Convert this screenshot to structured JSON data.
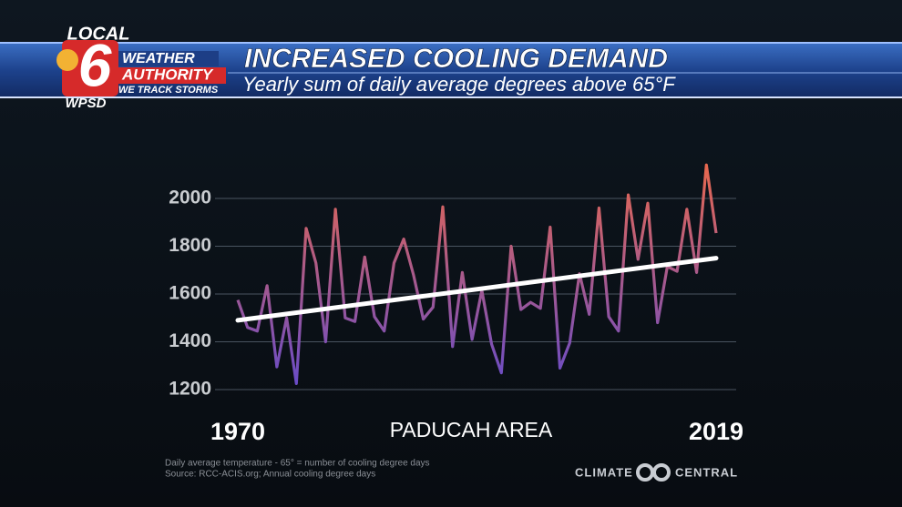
{
  "header": {
    "station_top": "LOCAL",
    "station_number": "6",
    "brand_line1": "WEATHER",
    "brand_line2": "AUTHORITY",
    "brand_line3": "WE TRACK STORMS",
    "station_call": "WPSD"
  },
  "chart_data": {
    "type": "line",
    "title": "INCREASED COOLING DEMAND",
    "subtitle": "Yearly sum of daily average degrees above 65°F",
    "x_label": "PADUCAH AREA",
    "x": [
      1970,
      1971,
      1972,
      1973,
      1974,
      1975,
      1976,
      1977,
      1978,
      1979,
      1980,
      1981,
      1982,
      1983,
      1984,
      1985,
      1986,
      1987,
      1988,
      1989,
      1990,
      1991,
      1992,
      1993,
      1994,
      1995,
      1996,
      1997,
      1998,
      1999,
      2000,
      2001,
      2002,
      2003,
      2004,
      2005,
      2006,
      2007,
      2008,
      2009,
      2010,
      2011,
      2012,
      2013,
      2014,
      2015,
      2016,
      2017,
      2018,
      2019
    ],
    "values": [
      1575,
      1460,
      1445,
      1635,
      1295,
      1500,
      1225,
      1875,
      1730,
      1400,
      1955,
      1500,
      1485,
      1755,
      1505,
      1445,
      1730,
      1830,
      1680,
      1495,
      1545,
      1965,
      1380,
      1690,
      1410,
      1615,
      1390,
      1270,
      1800,
      1535,
      1565,
      1540,
      1880,
      1290,
      1395,
      1685,
      1515,
      1960,
      1505,
      1445,
      2015,
      1745,
      1980,
      1480,
      1715,
      1695,
      1955,
      1690,
      2140,
      1855
    ],
    "line_gradient": [
      "#e8684f",
      "#6a4cc6"
    ],
    "trend_x": [
      1970,
      2019
    ],
    "trend_values": [
      1490,
      1750
    ],
    "trend_color": "#ffffff",
    "xlim": [
      1970,
      2019
    ],
    "xticks": [
      1970,
      2019
    ],
    "ylim": [
      1200,
      2000
    ],
    "yticks": [
      1200,
      1400,
      1600,
      1800,
      2000
    ],
    "grid": true,
    "footnote": [
      "Daily average temperature - 65° = number of cooling degree days",
      "Source: RCC-ACIS.org; Annual cooling degree days"
    ],
    "credit": [
      "CLIMATE",
      "CENTRAL"
    ]
  }
}
